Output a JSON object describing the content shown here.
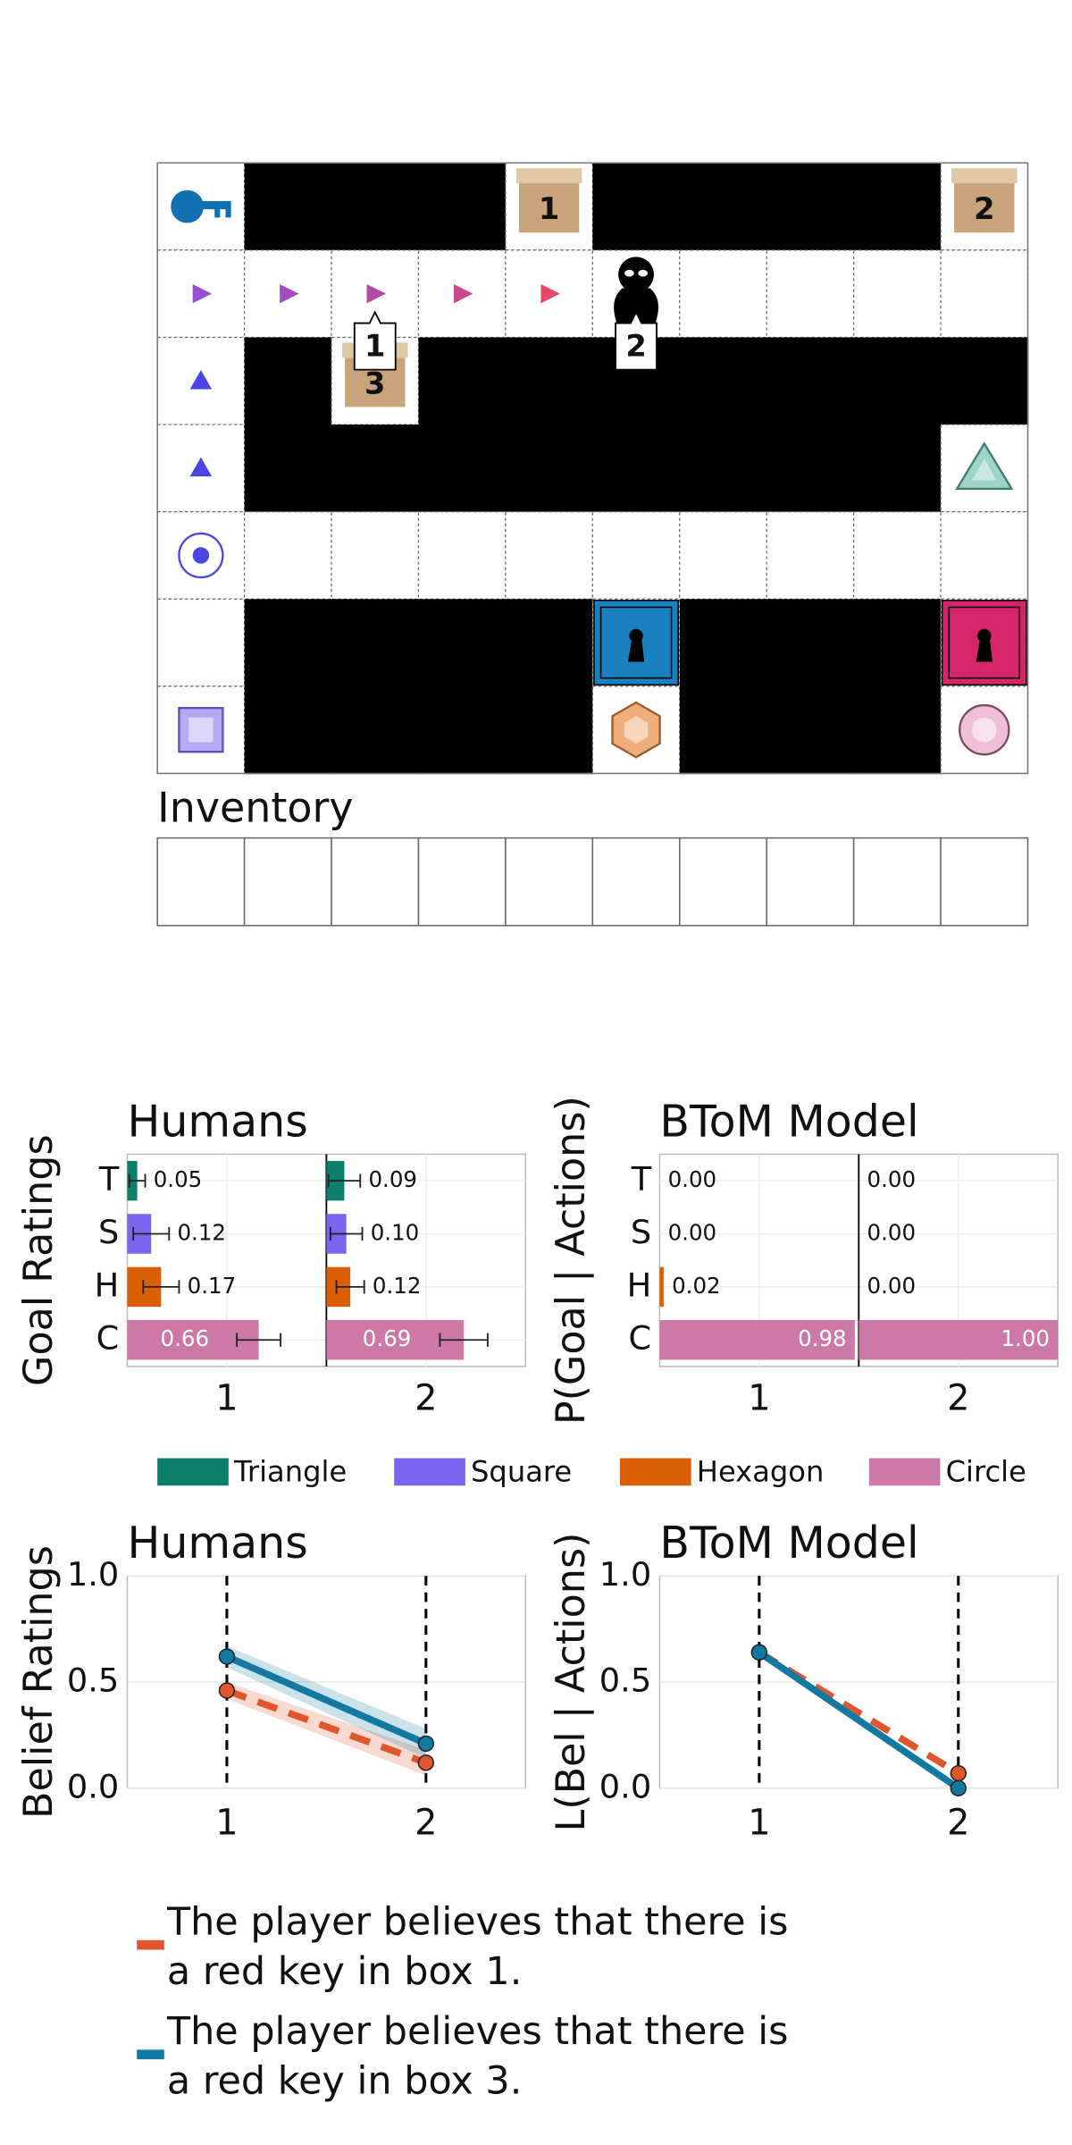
{
  "gridworld": {
    "boxes": [
      "1",
      "2",
      "3"
    ],
    "callouts": [
      "1",
      "2"
    ],
    "inventory_label": "Inventory"
  },
  "chart_data": [
    {
      "type": "bar",
      "orientation": "horizontal",
      "title": "Humans",
      "ylabel": "Goal Ratings",
      "categories": [
        "T",
        "S",
        "H",
        "C"
      ],
      "colors": [
        "#0b7f6b",
        "#7b64ee",
        "#d95f02",
        "#cc79a7"
      ],
      "legend": [
        "Triangle",
        "Square",
        "Hexagon",
        "Circle"
      ],
      "xlim": [
        0,
        1
      ],
      "panels": [
        {
          "label": "1",
          "values": [
            0.05,
            0.12,
            0.17,
            0.66
          ],
          "value_labels": [
            "0.05",
            "0.12",
            "0.17",
            "0.66"
          ],
          "errors": [
            0.04,
            0.09,
            0.09,
            0.11
          ]
        },
        {
          "label": "2",
          "values": [
            0.09,
            0.1,
            0.12,
            0.69
          ],
          "value_labels": [
            "0.09",
            "0.10",
            "0.12",
            "0.69"
          ],
          "errors": [
            0.08,
            0.08,
            0.07,
            0.12
          ]
        }
      ]
    },
    {
      "type": "bar",
      "orientation": "horizontal",
      "title": "BToM Model",
      "ylabel": "P(Goal | Actions)",
      "categories": [
        "T",
        "S",
        "H",
        "C"
      ],
      "colors": [
        "#0b7f6b",
        "#7b64ee",
        "#d95f02",
        "#cc79a7"
      ],
      "xlim": [
        0,
        1
      ],
      "panels": [
        {
          "label": "1",
          "values": [
            0,
            0,
            0.02,
            0.98
          ],
          "value_labels": [
            "0.00",
            "0.00",
            "0.02",
            "0.98"
          ]
        },
        {
          "label": "2",
          "values": [
            0,
            0,
            0,
            1
          ],
          "value_labels": [
            "0.00",
            "0.00",
            "0.00",
            "1.00"
          ]
        }
      ]
    },
    {
      "type": "line",
      "title": "Humans",
      "ylabel": "Belief Ratings",
      "x": [
        1,
        2
      ],
      "xlim": [
        0.5,
        2.5
      ],
      "xticks": [
        1,
        2
      ],
      "ylim": [
        0,
        1
      ],
      "yticks": [
        {
          "value": 0,
          "label": "0.0"
        },
        {
          "value": 0.5,
          "label": "0.5"
        },
        {
          "value": 1,
          "label": "1.0"
        }
      ],
      "grid": true,
      "series": [
        {
          "name": "The player believes that there is\n a red key in box 1.",
          "color": "#e0562f",
          "dashed": true,
          "values": [
            0.46,
            0.12
          ],
          "errors": [
            0.04,
            0.06
          ]
        },
        {
          "name": "The player believes that there is\n a red key in box 3.",
          "color": "#127aa2",
          "dashed": false,
          "values": [
            0.62,
            0.21
          ],
          "errors": [
            0.05,
            0.07
          ]
        }
      ]
    },
    {
      "type": "line",
      "title": "BToM Model",
      "ylabel": "L(Bel | Actions)",
      "x": [
        1,
        2
      ],
      "xlim": [
        0.5,
        2.5
      ],
      "xticks": [
        1,
        2
      ],
      "ylim": [
        0,
        1
      ],
      "yticks": [
        {
          "value": 0,
          "label": "0.0"
        },
        {
          "value": 0.5,
          "label": "0.5"
        },
        {
          "value": 1,
          "label": "1.0"
        }
      ],
      "grid": true,
      "series": [
        {
          "color": "#e0562f",
          "dashed": true,
          "values": [
            0.64,
            0.07
          ]
        },
        {
          "color": "#127aa2",
          "dashed": false,
          "values": [
            0.64,
            0
          ]
        }
      ]
    }
  ]
}
